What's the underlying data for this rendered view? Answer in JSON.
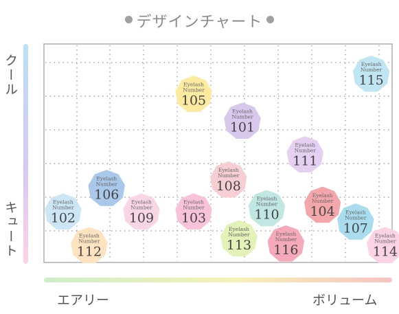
{
  "title": "デザインチャート",
  "axes": {
    "y_top": "クール",
    "y_bottom": "キュート",
    "x_left": "エアリー",
    "x_right": "ボリューム"
  },
  "badge_caption": [
    "Eyelash",
    "Number"
  ],
  "chart_data": {
    "type": "scatter",
    "xlabel_left": "エアリー",
    "xlabel_right": "ボリューム",
    "ylabel_top": "クール",
    "ylabel_bottom": "キュート",
    "xlim": [
      0,
      10
    ],
    "ylim": [
      0,
      6.5
    ],
    "grid": true,
    "points": [
      {
        "label": "105",
        "x": 4.3,
        "y": 5.0,
        "color": "#fbeaa0"
      },
      {
        "label": "115",
        "x": 9.4,
        "y": 5.6,
        "color": "#bfe6f2"
      },
      {
        "label": "101",
        "x": 5.7,
        "y": 4.2,
        "color": "#d8c8ec"
      },
      {
        "label": "111",
        "x": 7.5,
        "y": 3.2,
        "color": "#e5d0f2"
      },
      {
        "label": "108",
        "x": 5.3,
        "y": 2.45,
        "color": "#f7cfd3"
      },
      {
        "label": "106",
        "x": 1.8,
        "y": 2.2,
        "color": "#a9c8ea"
      },
      {
        "label": "104",
        "x": 8.0,
        "y": 1.7,
        "color": "#f4a7ab"
      },
      {
        "label": "102",
        "x": 0.55,
        "y": 1.5,
        "color": "#cde6f6"
      },
      {
        "label": "109",
        "x": 2.8,
        "y": 1.5,
        "color": "#f8d6e6"
      },
      {
        "label": "103",
        "x": 4.3,
        "y": 1.5,
        "color": "#f8c3d8"
      },
      {
        "label": "110",
        "x": 6.4,
        "y": 1.6,
        "color": "#c1e7e2"
      },
      {
        "label": "107",
        "x": 8.95,
        "y": 1.2,
        "color": "#a9dcef"
      },
      {
        "label": "113",
        "x": 5.6,
        "y": 0.7,
        "color": "#e3f2b6"
      },
      {
        "label": "116",
        "x": 6.95,
        "y": 0.55,
        "color": "#f6a9b8"
      },
      {
        "label": "112",
        "x": 1.3,
        "y": 0.5,
        "color": "#fde3c0"
      },
      {
        "label": "114",
        "x": 9.8,
        "y": 0.5,
        "color": "#fad3e4"
      }
    ]
  }
}
